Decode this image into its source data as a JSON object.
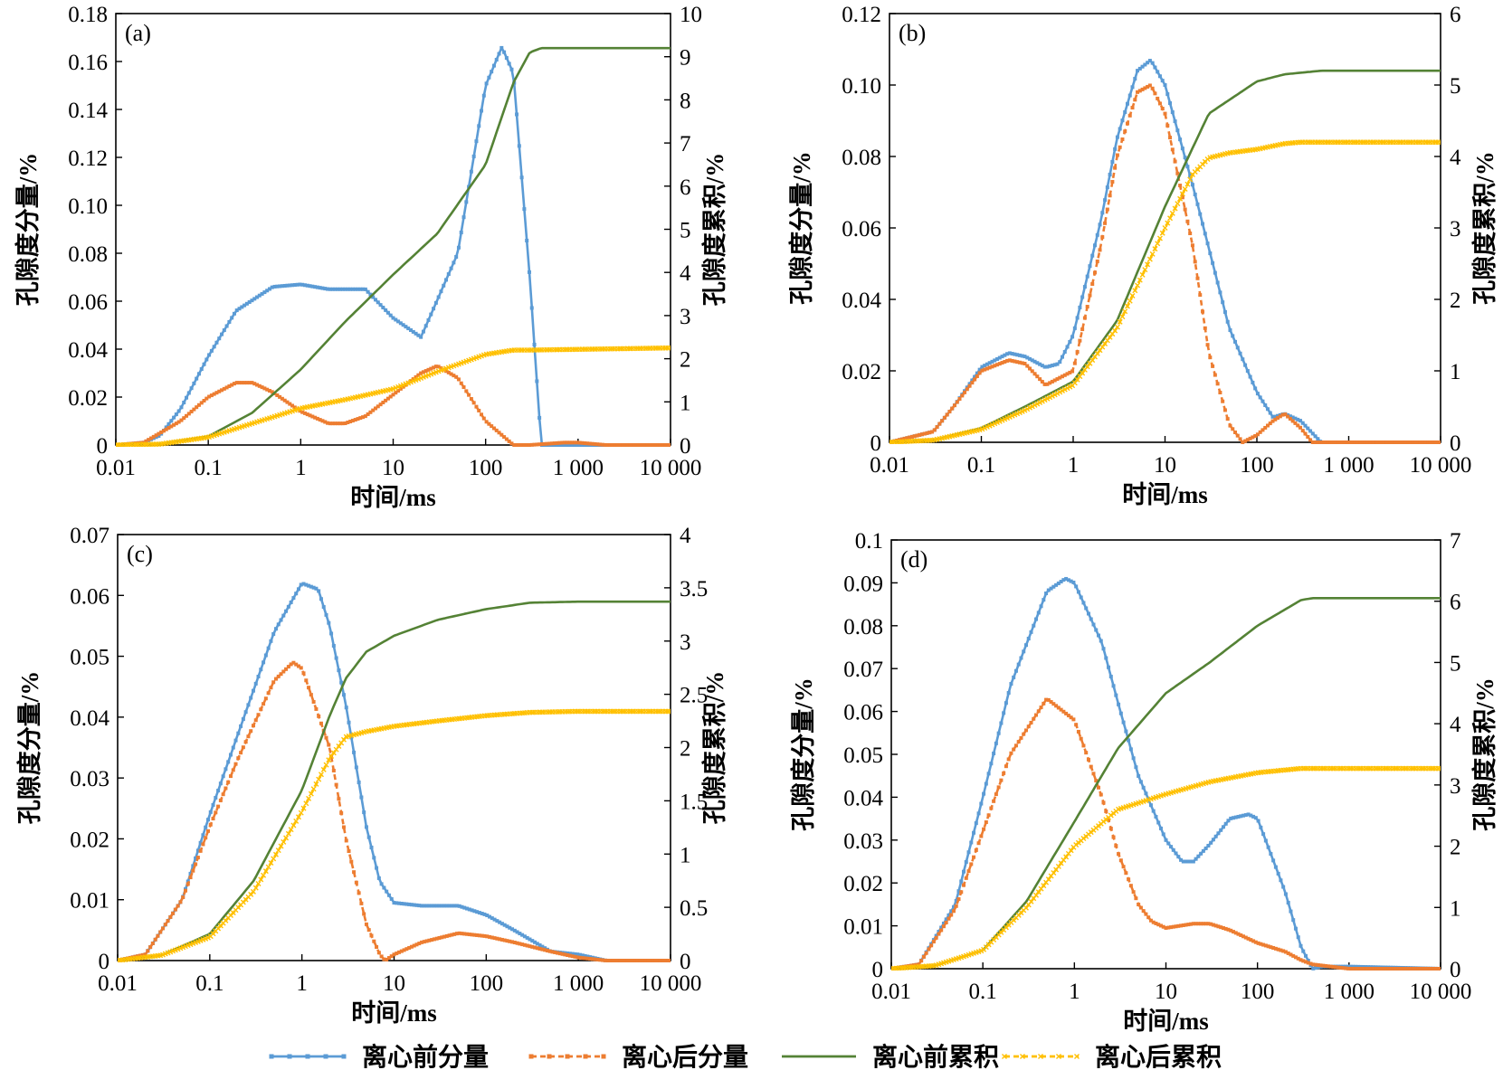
{
  "legend": [
    {
      "label": "离心前分量",
      "color": "#5b9bd5",
      "marker": "square",
      "dash": "none"
    },
    {
      "label": "离心后分量",
      "color": "#ed7d31",
      "marker": "square",
      "dash": "6,4"
    },
    {
      "label": "离心前累积",
      "color": "#548235",
      "marker": "none",
      "dash": "none"
    },
    {
      "label": "离心后累积",
      "color": "#ffc000",
      "marker": "x",
      "dash": "6,4"
    }
  ],
  "chart_data": [
    {
      "type": "line",
      "panel": "(a)",
      "xlabel": "时间/ms",
      "ylabel": "孔隙度分量/%",
      "y2label": "孔隙度累积/%",
      "xscale": "log",
      "xlim": [
        0.01,
        10000
      ],
      "xticks": [
        "0.01",
        "0.1",
        "1",
        "10",
        "100",
        "1 000",
        "10 000"
      ],
      "ylim": [
        0,
        0.18
      ],
      "yticks": [
        "0",
        "0.02",
        "0.04",
        "0.06",
        "0.08",
        "0.10",
        "0.12",
        "0.14",
        "0.16",
        "0.18"
      ],
      "y2lim": [
        0,
        10
      ],
      "y2ticks": [
        "0",
        "1",
        "2",
        "3",
        "4",
        "5",
        "6",
        "7",
        "8",
        "9",
        "10"
      ],
      "series": [
        {
          "name": "离心前分量",
          "axis": "left",
          "x": [
            0.01,
            0.02,
            0.03,
            0.05,
            0.1,
            0.2,
            0.5,
            1,
            2,
            5,
            10,
            20,
            50,
            100,
            150,
            200,
            300,
            400,
            10000
          ],
          "y": [
            0,
            0.001,
            0.004,
            0.015,
            0.037,
            0.056,
            0.066,
            0.067,
            0.065,
            0.065,
            0.053,
            0.045,
            0.08,
            0.15,
            0.166,
            0.155,
            0.07,
            0,
            0
          ]
        },
        {
          "name": "离心后分量",
          "axis": "left",
          "x": [
            0.01,
            0.02,
            0.05,
            0.1,
            0.2,
            0.3,
            0.5,
            1,
            2,
            3,
            5,
            10,
            20,
            30,
            50,
            100,
            200,
            300,
            700,
            1000,
            2000,
            10000
          ],
          "y": [
            0,
            0.001,
            0.01,
            0.02,
            0.026,
            0.026,
            0.022,
            0.014,
            0.009,
            0.009,
            0.012,
            0.021,
            0.03,
            0.033,
            0.028,
            0.01,
            0,
            0,
            0.001,
            0.001,
            0,
            0
          ]
        },
        {
          "name": "离心前累积",
          "axis": "right",
          "x": [
            0.01,
            0.03,
            0.1,
            0.3,
            1,
            3,
            10,
            30,
            100,
            200,
            300,
            400,
            10000
          ],
          "y": [
            0,
            0.02,
            0.2,
            0.75,
            1.75,
            2.85,
            3.95,
            4.9,
            6.5,
            8.4,
            9.1,
            9.2,
            9.2
          ]
        },
        {
          "name": "离心后累积",
          "axis": "right",
          "x": [
            0.01,
            0.03,
            0.1,
            0.3,
            1,
            3,
            10,
            30,
            100,
            200,
            300,
            10000
          ],
          "y": [
            0,
            0.02,
            0.18,
            0.5,
            0.85,
            1.05,
            1.3,
            1.7,
            2.1,
            2.2,
            2.2,
            2.25
          ]
        }
      ]
    },
    {
      "type": "line",
      "panel": "(b)",
      "xlabel": "时间/ms",
      "ylabel": "孔隙度分量/%",
      "y2label": "孔隙度累积/%",
      "xscale": "log",
      "xlim": [
        0.01,
        10000
      ],
      "xticks": [
        "0.01",
        "0.1",
        "1",
        "10",
        "100",
        "1 000",
        "10 000"
      ],
      "ylim": [
        0,
        0.12
      ],
      "yticks": [
        "0",
        "0.02",
        "0.04",
        "0.06",
        "0.08",
        "0.10",
        "0.12"
      ],
      "y2lim": [
        0,
        6
      ],
      "y2ticks": [
        "0",
        "1",
        "2",
        "3",
        "4",
        "5",
        "6"
      ],
      "series": [
        {
          "name": "离心前分量",
          "axis": "left",
          "x": [
            0.01,
            0.03,
            0.05,
            0.1,
            0.2,
            0.3,
            0.5,
            0.7,
            1,
            2,
            3,
            5,
            7,
            10,
            20,
            50,
            100,
            150,
            200,
            300,
            500,
            10000
          ],
          "y": [
            0,
            0.003,
            0.01,
            0.021,
            0.025,
            0.024,
            0.021,
            0.022,
            0.03,
            0.062,
            0.085,
            0.104,
            0.107,
            0.1,
            0.072,
            0.032,
            0.014,
            0.007,
            0.008,
            0.006,
            0,
            0
          ]
        },
        {
          "name": "离心后分量",
          "axis": "left",
          "x": [
            0.01,
            0.03,
            0.05,
            0.1,
            0.2,
            0.3,
            0.5,
            1,
            2,
            3,
            5,
            7,
            10,
            20,
            30,
            50,
            70,
            100,
            150,
            200,
            300,
            400,
            500,
            10000
          ],
          "y": [
            0,
            0.003,
            0.01,
            0.02,
            0.023,
            0.022,
            0.016,
            0.02,
            0.055,
            0.08,
            0.098,
            0.1,
            0.092,
            0.055,
            0.025,
            0.005,
            0,
            0.002,
            0.006,
            0.008,
            0.004,
            0,
            0,
            0
          ]
        },
        {
          "name": "离心前累积",
          "axis": "right",
          "x": [
            0.01,
            0.03,
            0.1,
            0.3,
            1,
            3,
            10,
            30,
            100,
            200,
            500,
            10000
          ],
          "y": [
            0,
            0.03,
            0.2,
            0.5,
            0.85,
            1.7,
            3.3,
            4.6,
            5.05,
            5.15,
            5.2,
            5.2
          ]
        },
        {
          "name": "离心后累积",
          "axis": "right",
          "x": [
            0.01,
            0.03,
            0.1,
            0.3,
            1,
            3,
            10,
            20,
            30,
            50,
            100,
            200,
            300,
            10000
          ],
          "y": [
            0,
            0.03,
            0.18,
            0.45,
            0.8,
            1.6,
            3.0,
            3.75,
            3.98,
            4.05,
            4.1,
            4.18,
            4.2,
            4.2
          ]
        }
      ]
    },
    {
      "type": "line",
      "panel": "(c)",
      "xlabel": "时间/ms",
      "ylabel": "孔隙度分量/%",
      "y2label": "孔隙度累积/%",
      "xscale": "log",
      "xlim": [
        0.01,
        10000
      ],
      "xticks": [
        "0.01",
        "0.1",
        "1",
        "10",
        "100",
        "1 000",
        "10 000"
      ],
      "ylim": [
        0,
        0.07
      ],
      "yticks": [
        "0",
        "0.01",
        "0.02",
        "0.03",
        "0.04",
        "0.05",
        "0.06",
        "0.07"
      ],
      "y2lim": [
        0,
        4
      ],
      "y2ticks": [
        "0",
        "0.5",
        "1",
        "1.5",
        "2",
        "2.5",
        "3",
        "3.5",
        "4"
      ],
      "series": [
        {
          "name": "离心前分量",
          "axis": "left",
          "x": [
            0.01,
            0.02,
            0.05,
            0.1,
            0.2,
            0.5,
            1,
            1.5,
            2,
            3,
            5,
            7,
            10,
            20,
            50,
            100,
            200,
            500,
            1000,
            2000,
            10000
          ],
          "y": [
            0,
            0.001,
            0.01,
            0.024,
            0.037,
            0.054,
            0.062,
            0.061,
            0.055,
            0.042,
            0.022,
            0.013,
            0.0095,
            0.009,
            0.009,
            0.0075,
            0.005,
            0.0015,
            0.001,
            0,
            0
          ]
        },
        {
          "name": "离心后分量",
          "axis": "left",
          "x": [
            0.01,
            0.02,
            0.05,
            0.1,
            0.2,
            0.5,
            0.8,
            1,
            2,
            3,
            5,
            7,
            8,
            10,
            20,
            50,
            100,
            200,
            500,
            1000,
            2000,
            10000
          ],
          "y": [
            0,
            0.001,
            0.01,
            0.022,
            0.033,
            0.046,
            0.049,
            0.048,
            0.035,
            0.02,
            0.006,
            0.001,
            0,
            0.001,
            0.003,
            0.0045,
            0.004,
            0.003,
            0.0015,
            0.0005,
            0,
            0
          ]
        },
        {
          "name": "离心前累积",
          "axis": "right",
          "x": [
            0.01,
            0.03,
            0.1,
            0.3,
            1,
            2,
            3,
            5,
            10,
            30,
            100,
            300,
            1000,
            10000
          ],
          "y": [
            0,
            0.05,
            0.25,
            0.75,
            1.6,
            2.3,
            2.65,
            2.9,
            3.05,
            3.2,
            3.3,
            3.36,
            3.37,
            3.37
          ]
        },
        {
          "name": "离心后累积",
          "axis": "right",
          "x": [
            0.01,
            0.03,
            0.1,
            0.3,
            1,
            2,
            3,
            5,
            10,
            30,
            100,
            300,
            1000,
            10000
          ],
          "y": [
            0,
            0.05,
            0.22,
            0.65,
            1.4,
            1.9,
            2.1,
            2.15,
            2.2,
            2.25,
            2.3,
            2.33,
            2.34,
            2.34
          ]
        }
      ]
    },
    {
      "type": "line",
      "panel": "(d)",
      "xlabel": "时间/ms",
      "ylabel": "孔隙度分量/%",
      "y2label": "孔隙度累积/%",
      "xscale": "log",
      "xlim": [
        0.01,
        10000
      ],
      "xticks": [
        "0.01",
        "0.1",
        "1",
        "10",
        "100",
        "1 000",
        "10 000"
      ],
      "ylim": [
        0,
        0.1
      ],
      "yticks": [
        "0",
        "0.01",
        "0.02",
        "0.03",
        "0.04",
        "0.05",
        "0.06",
        "0.07",
        "0.08",
        "0.09",
        "0.1"
      ],
      "y2lim": [
        0,
        7
      ],
      "y2ticks": [
        "0",
        "1",
        "2",
        "3",
        "4",
        "5",
        "6",
        "7"
      ],
      "series": [
        {
          "name": "离心前分量",
          "axis": "left",
          "x": [
            0.01,
            0.02,
            0.05,
            0.1,
            0.2,
            0.5,
            0.8,
            1,
            2,
            3,
            5,
            10,
            15,
            20,
            30,
            50,
            80,
            100,
            200,
            300,
            400,
            500,
            1000,
            10000
          ],
          "y": [
            0,
            0.001,
            0.015,
            0.04,
            0.066,
            0.088,
            0.091,
            0.09,
            0.076,
            0.062,
            0.045,
            0.03,
            0.025,
            0.025,
            0.029,
            0.035,
            0.036,
            0.035,
            0.018,
            0.005,
            0,
            0.0005,
            0.0005,
            0
          ]
        },
        {
          "name": "离心后分量",
          "axis": "left",
          "x": [
            0.01,
            0.02,
            0.05,
            0.1,
            0.2,
            0.5,
            1,
            2,
            3,
            5,
            7,
            10,
            20,
            30,
            50,
            100,
            200,
            300,
            400,
            1000,
            10000
          ],
          "y": [
            0,
            0.001,
            0.014,
            0.032,
            0.05,
            0.063,
            0.058,
            0.04,
            0.027,
            0.015,
            0.011,
            0.0095,
            0.0105,
            0.0105,
            0.009,
            0.006,
            0.004,
            0.002,
            0.001,
            0,
            0
          ]
        },
        {
          "name": "离心前累积",
          "axis": "right",
          "x": [
            0.01,
            0.03,
            0.1,
            0.3,
            1,
            3,
            10,
            30,
            100,
            300,
            400,
            10000
          ],
          "y": [
            0,
            0.05,
            0.3,
            1.1,
            2.4,
            3.6,
            4.5,
            5.0,
            5.6,
            6.02,
            6.05,
            6.05
          ]
        },
        {
          "name": "离心后累积",
          "axis": "right",
          "x": [
            0.01,
            0.03,
            0.1,
            0.3,
            1,
            3,
            10,
            30,
            100,
            300,
            10000
          ],
          "y": [
            0,
            0.05,
            0.3,
            1.0,
            2.0,
            2.6,
            2.85,
            3.05,
            3.2,
            3.27,
            3.27
          ]
        }
      ]
    }
  ]
}
